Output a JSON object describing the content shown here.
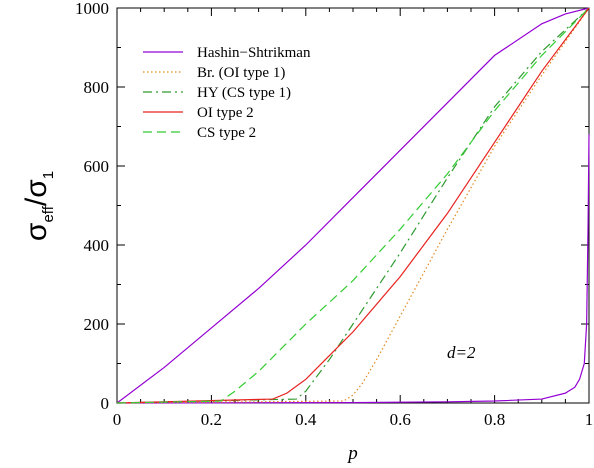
{
  "chart_data": {
    "type": "line",
    "xlabel": "p",
    "ylabel_base": "σ",
    "ylabel_sub1": "eff",
    "ylabel_mid": "/σ",
    "ylabel_sub2": "1",
    "xlim": [
      0,
      1
    ],
    "ylim": [
      0,
      1000
    ],
    "x_ticks": [
      "0",
      "0.2",
      "0.4",
      "0.6",
      "0.8",
      "1"
    ],
    "y_ticks": [
      "0",
      "200",
      "400",
      "600",
      "800",
      "1000"
    ],
    "annotation": "d=2",
    "legend_position": "top-left",
    "grid": false,
    "series": [
      {
        "name": "Hashin−Shtrikman",
        "color": "#9400d3",
        "dash": "solid",
        "x": [
          0,
          0.1,
          0.2,
          0.3,
          0.4,
          0.5,
          0.6,
          0.7,
          0.8,
          0.9,
          0.95,
          1.0
        ],
        "y": [
          0,
          90,
          190,
          290,
          400,
          520,
          640,
          760,
          880,
          960,
          985,
          1000
        ]
      },
      {
        "name": "Hashin−Shtrikman",
        "color": "#9400d3",
        "dash": "solid",
        "x": [
          0,
          0.5,
          0.7,
          0.8,
          0.9,
          0.95,
          0.97,
          0.98,
          0.99,
          0.995,
          0.998,
          1.0
        ],
        "y": [
          0,
          1,
          3,
          5,
          10,
          25,
          40,
          60,
          100,
          200,
          450,
          680
        ]
      },
      {
        "name": "Br. (OI type 1)",
        "color": "#e08a20",
        "dash": "dotted",
        "x": [
          0,
          0.48,
          0.5,
          0.52,
          0.55,
          0.6,
          0.7,
          0.8,
          0.9,
          1.0
        ],
        "y": [
          0,
          5,
          20,
          50,
          110,
          220,
          440,
          650,
          830,
          1000
        ]
      },
      {
        "name": "HY (CS type 1)",
        "color": "#2e9a2e",
        "dash": "dashdot",
        "x": [
          0,
          0.38,
          0.4,
          0.45,
          0.5,
          0.6,
          0.7,
          0.8,
          0.9,
          1.0
        ],
        "y": [
          0,
          10,
          30,
          110,
          200,
          380,
          570,
          750,
          890,
          1000
        ]
      },
      {
        "name": "OI type 2",
        "color": "#e8221e",
        "dash": "solid",
        "x": [
          0,
          0.33,
          0.36,
          0.4,
          0.45,
          0.5,
          0.6,
          0.7,
          0.8,
          0.9,
          1.0
        ],
        "y": [
          0,
          10,
          25,
          60,
          120,
          180,
          320,
          480,
          660,
          840,
          1000
        ]
      },
      {
        "name": "CS type 2",
        "color": "#33cc33",
        "dash": "dashed",
        "x": [
          0,
          0.22,
          0.25,
          0.3,
          0.35,
          0.4,
          0.5,
          0.6,
          0.7,
          0.8,
          0.9,
          1.0
        ],
        "y": [
          0,
          5,
          30,
          80,
          140,
          200,
          310,
          440,
          580,
          740,
          880,
          1000
        ]
      }
    ],
    "legend": [
      {
        "label": "Hashin−Shtrikman",
        "color": "#9400d3",
        "dash": "solid"
      },
      {
        "label": "Br. (OI type 1)",
        "color": "#e08a20",
        "dash": "dotted"
      },
      {
        "label": "HY (CS type 1)",
        "color": "#2e9a2e",
        "dash": "dashdot"
      },
      {
        "label": "OI type 2",
        "color": "#e8221e",
        "dash": "solid"
      },
      {
        "label": "CS type 2",
        "color": "#33cc33",
        "dash": "dashed"
      }
    ]
  }
}
